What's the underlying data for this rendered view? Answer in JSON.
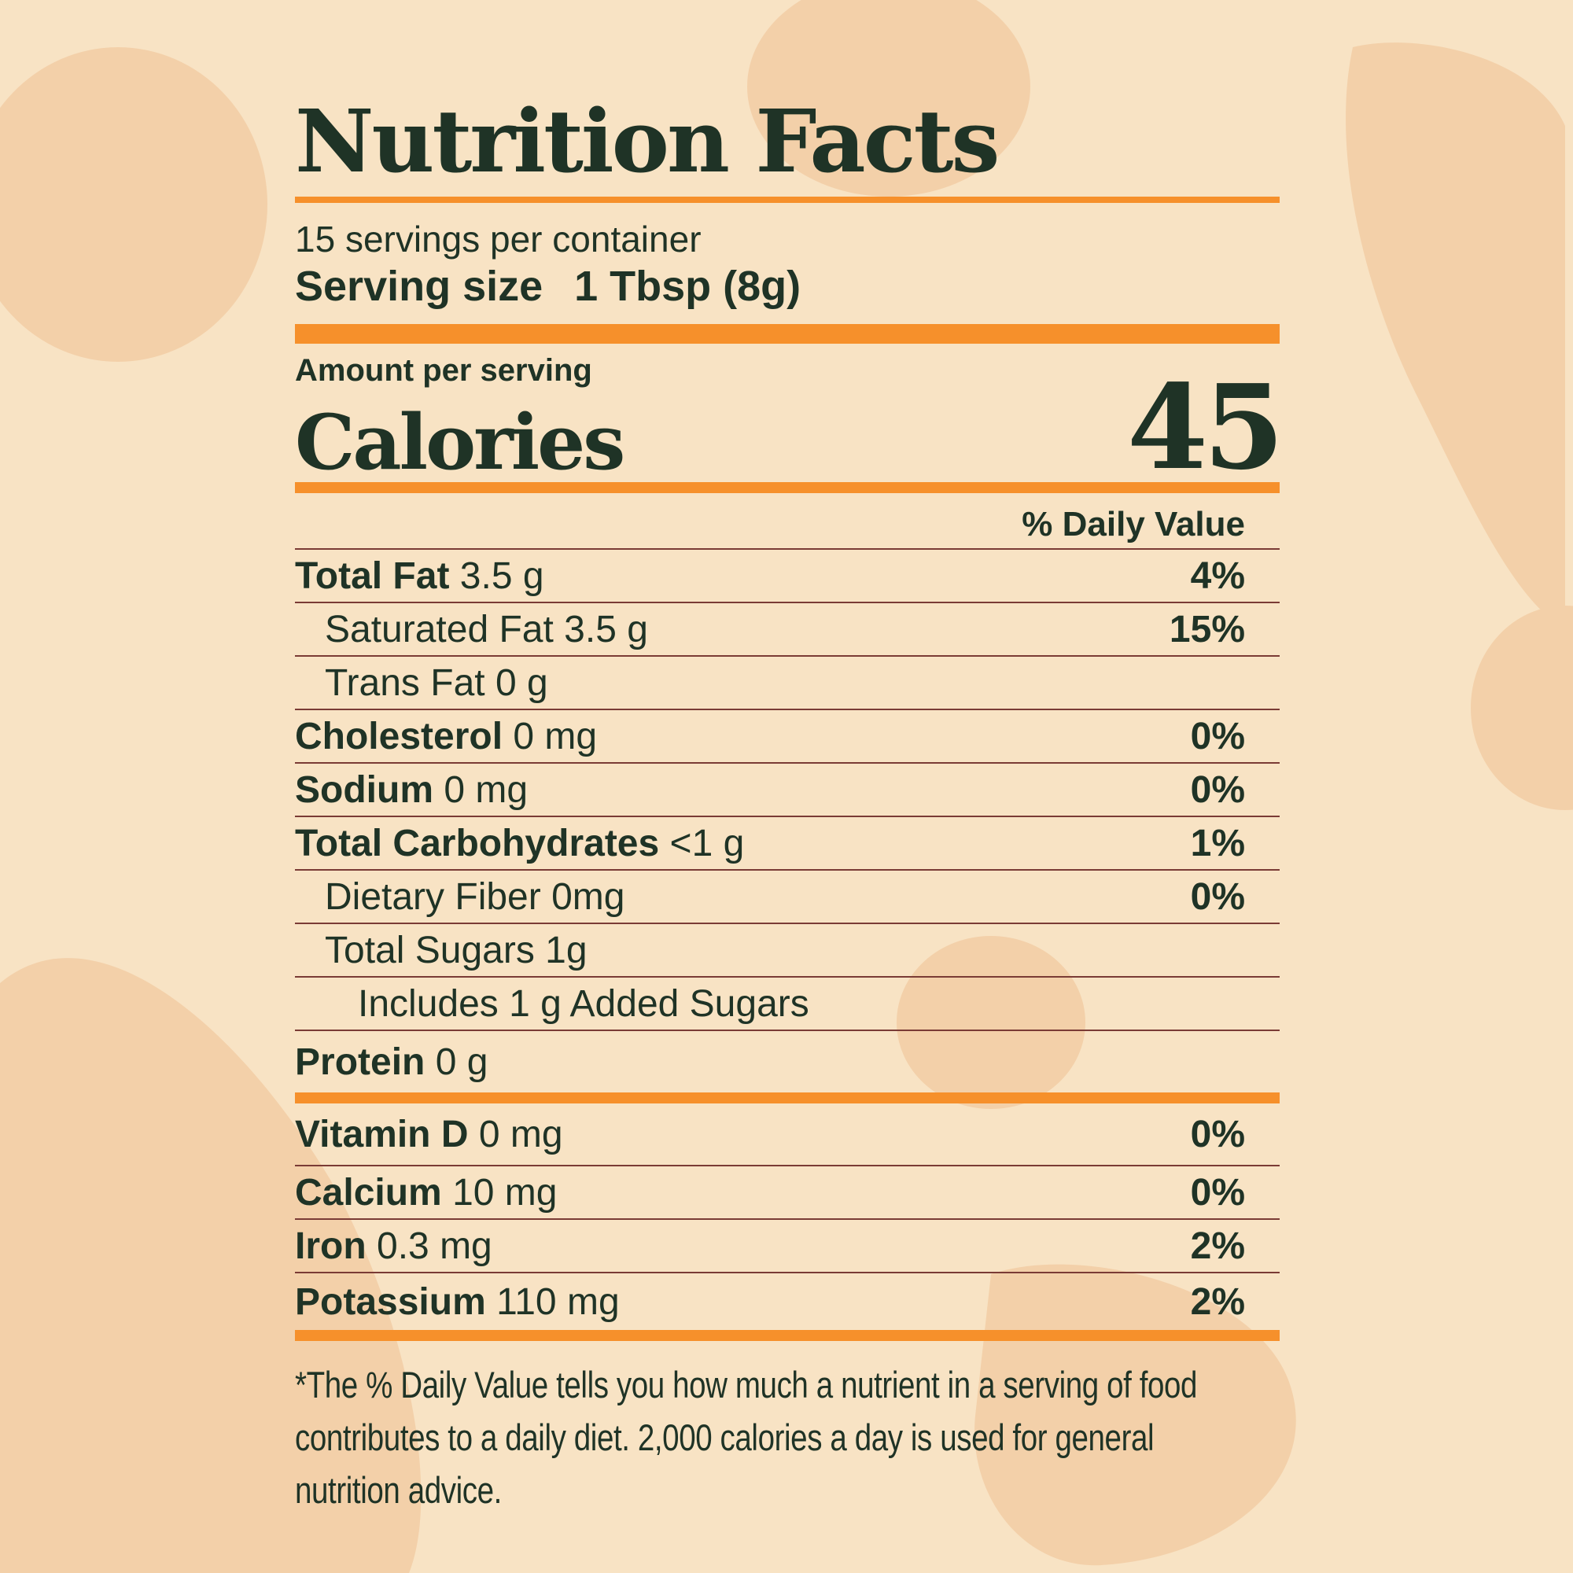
{
  "colors": {
    "background": "#f8e3c4",
    "accent": "#f6902b",
    "text": "#1f3326",
    "divider": "#7a3b35",
    "decor": "#f2caa0"
  },
  "title": "Nutrition Facts",
  "servings_per_container": "15 servings per container",
  "serving_size": {
    "label": "Serving size",
    "value": "1 Tbsp (8g)"
  },
  "amount_per_serving": "Amount per serving",
  "calories": {
    "label": "Calories",
    "value": "45"
  },
  "daily_value_header": "% Daily Value",
  "nutrients": [
    {
      "name": "Total Fat",
      "amount": "3.5 g",
      "dv": "4%"
    },
    {
      "name": "Saturated Fat 3.5 g",
      "amount": "",
      "dv": "15%"
    },
    {
      "name": "Trans Fat 0 g",
      "amount": "",
      "dv": ""
    },
    {
      "name": "Cholesterol",
      "amount": "0 mg",
      "dv": "0%"
    },
    {
      "name": "Sodium",
      "amount": "0 mg",
      "dv": "0%"
    },
    {
      "name": "Total Carbohydrates",
      "amount": "<1 g",
      "dv": "1%"
    },
    {
      "name": "Dietary Fiber 0mg",
      "amount": "",
      "dv": "0%"
    },
    {
      "name": "Total Sugars 1g",
      "amount": "",
      "dv": ""
    },
    {
      "name": "Includes 1 g Added Sugars",
      "amount": "",
      "dv": ""
    },
    {
      "name": "Protein",
      "amount": "0 g",
      "dv": ""
    }
  ],
  "vitamins": [
    {
      "name": "Vitamin D",
      "amount": "0 mg",
      "dv": "0%"
    },
    {
      "name": "Calcium",
      "amount": "10 mg",
      "dv": "0%"
    },
    {
      "name": "Iron",
      "amount": "0.3 mg",
      "dv": "2%"
    },
    {
      "name": "Potassium",
      "amount": "110 mg",
      "dv": "2%"
    }
  ],
  "footnote": "*The % Daily Value tells you how much a nutrient in a serving of food contributes to a daily diet. 2,000 calories a day is used for general nutrition advice."
}
